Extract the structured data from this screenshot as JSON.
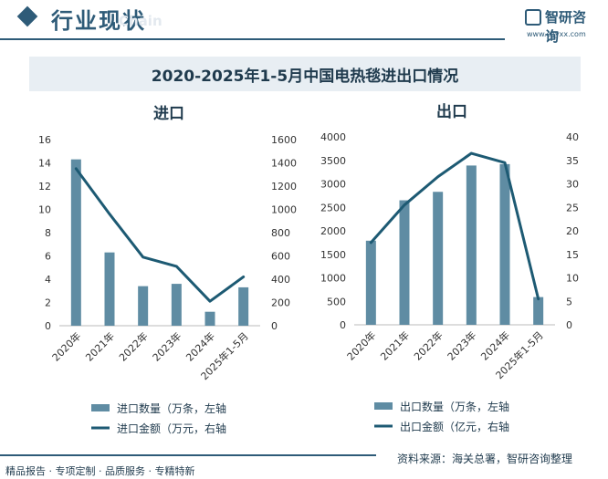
{
  "header": {
    "title": "行业现状",
    "watermark": "Chain"
  },
  "logo": {
    "name": "智研咨询",
    "url": "www.chyxx.com"
  },
  "main_title": "2020-2025年1-5月中国电热毯进出口情况",
  "footer": {
    "tagline": "精品报告 · 专项定制 · 品质服务 · 专精特新",
    "source": "资料来源：海关总署，智研咨询整理"
  },
  "colors": {
    "bar": "#5f8ca3",
    "line": "#1d5a73",
    "brand": "#2e5b78"
  },
  "chart_data": [
    {
      "type": "bar",
      "title": "进口",
      "categories": [
        "2020年",
        "2021年",
        "2022年",
        "2023年",
        "2024年",
        "2025年1-5月"
      ],
      "ylim": [
        0,
        16
      ],
      "yticks": [
        0,
        2,
        4,
        6,
        8,
        10,
        12,
        14,
        16
      ],
      "y2lim": [
        0,
        1600
      ],
      "y2ticks": [
        0,
        200,
        400,
        600,
        800,
        1000,
        1200,
        1400,
        1600
      ],
      "grid": false,
      "legend_position": "bottom",
      "series": [
        {
          "name": "进口数量（万条，左轴",
          "kind": "bar",
          "axis": "left",
          "values": [
            14.3,
            6.3,
            3.4,
            3.6,
            1.2,
            3.3
          ]
        },
        {
          "name": "进口金额（万元，右轴",
          "kind": "line",
          "axis": "right",
          "values": [
            1350,
            960,
            590,
            510,
            210,
            420
          ]
        }
      ]
    },
    {
      "type": "bar",
      "title": "出口",
      "categories": [
        "2020年",
        "2021年",
        "2022年",
        "2023年",
        "2024年",
        "2025年1-5月"
      ],
      "ylim": [
        0,
        4000
      ],
      "yticks": [
        0,
        500,
        1000,
        1500,
        2000,
        2500,
        3000,
        3500,
        4000
      ],
      "y2lim": [
        0,
        40
      ],
      "y2ticks": [
        0,
        5,
        10,
        15,
        20,
        25,
        30,
        35,
        40
      ],
      "grid": false,
      "legend_position": "bottom",
      "series": [
        {
          "name": "出口数量（万条，左轴",
          "kind": "bar",
          "axis": "left",
          "values": [
            1790,
            2650,
            2830,
            3390,
            3420,
            590
          ]
        },
        {
          "name": "出口金额（亿元，右轴",
          "kind": "line",
          "axis": "right",
          "values": [
            17.5,
            25.5,
            31.5,
            36.5,
            34.5,
            5.5
          ]
        }
      ]
    }
  ]
}
